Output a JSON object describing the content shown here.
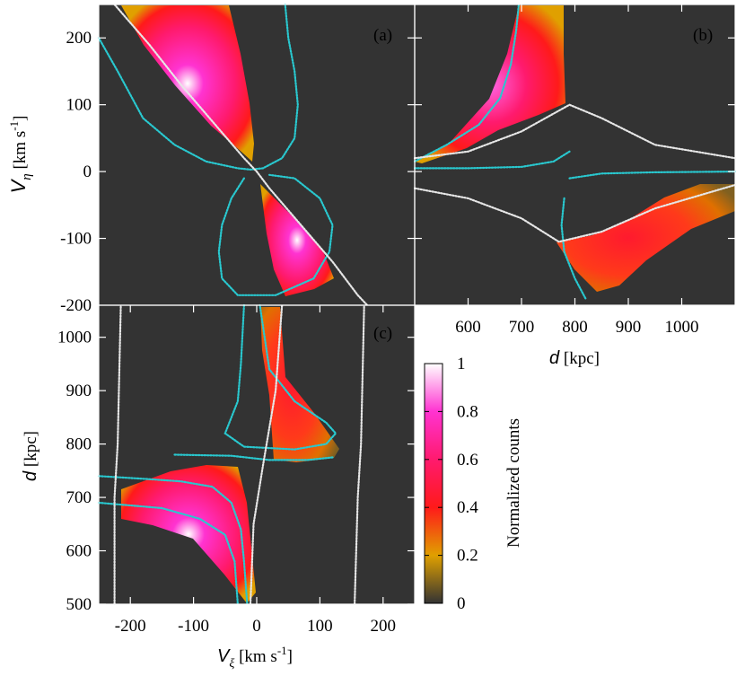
{
  "chart_data": [
    {
      "id": "a",
      "type": "heatmap",
      "panel_label": "(a)",
      "xlabel": "",
      "ylabel": "V_η [km s^-1]",
      "xlim": [
        -250,
        250
      ],
      "ylim": [
        -200,
        250
      ],
      "yticks": [
        200,
        100,
        0,
        -100
      ],
      "ytick_labels": [
        "200",
        "100",
        "0",
        "-100"
      ],
      "background": "#333333",
      "contours": [
        {
          "name": "cyan",
          "color": "#29c8cf",
          "points": [
            [
              -250,
              200
            ],
            [
              -220,
              150
            ],
            [
              -180,
              80
            ],
            [
              -130,
              40
            ],
            [
              -80,
              15
            ],
            [
              -30,
              5
            ],
            [
              -10,
              3
            ],
            [
              10,
              5
            ],
            [
              40,
              20
            ],
            [
              60,
              50
            ],
            [
              65,
              100
            ],
            [
              60,
              150
            ],
            [
              50,
              200
            ],
            [
              45,
              250
            ]
          ]
        },
        {
          "name": "cyan-lower",
          "color": "#29c8cf",
          "points": [
            [
              -20,
              -10
            ],
            [
              -40,
              -40
            ],
            [
              -55,
              -80
            ],
            [
              -60,
              -120
            ],
            [
              -55,
              -160
            ],
            [
              -30,
              -185
            ],
            [
              30,
              -185
            ],
            [
              90,
              -160
            ],
            [
              115,
              -120
            ],
            [
              120,
              -80
            ],
            [
              100,
              -40
            ],
            [
              60,
              -10
            ],
            [
              20,
              -5
            ]
          ]
        },
        {
          "name": "white",
          "color": "#e6e6e6",
          "points": [
            [
              -225,
              250
            ],
            [
              -170,
              190
            ],
            [
              -120,
              130
            ],
            [
              -70,
              75
            ],
            [
              -20,
              20
            ],
            [
              0,
              0
            ],
            [
              20,
              -25
            ],
            [
              70,
              -80
            ],
            [
              120,
              -135
            ],
            [
              160,
              -185
            ],
            [
              175,
              -200
            ]
          ]
        }
      ],
      "density_regions": [
        {
          "peak_x": -95,
          "peak_y": 110,
          "peak_value": 1.0
        },
        {
          "peak_x": 60,
          "peak_y": -100,
          "peak_value": 0.9
        }
      ]
    },
    {
      "id": "b",
      "type": "heatmap",
      "panel_label": "(b)",
      "xlabel": "d [kpc]",
      "ylabel": "",
      "xlim": [
        500,
        1100
      ],
      "ylim": [
        -200,
        250
      ],
      "xticks": [
        600,
        700,
        800,
        900,
        1000
      ],
      "xtick_labels": [
        "600",
        "700",
        "800",
        "900",
        "1000"
      ],
      "background": "#333333",
      "contours": [
        {
          "name": "cyan-upper",
          "color": "#29c8cf",
          "points": [
            [
              500,
              15
            ],
            [
              560,
              40
            ],
            [
              620,
              70
            ],
            [
              660,
              110
            ],
            [
              680,
              160
            ],
            [
              690,
              210
            ],
            [
              695,
              250
            ]
          ]
        },
        {
          "name": "cyan-mid",
          "color": "#29c8cf",
          "points": [
            [
              500,
              5
            ],
            [
              600,
              5
            ],
            [
              700,
              7
            ],
            [
              760,
              15
            ],
            [
              790,
              30
            ]
          ]
        },
        {
          "name": "cyan-right",
          "color": "#29c8cf",
          "points": [
            [
              790,
              -10
            ],
            [
              850,
              -3
            ],
            [
              950,
              -1
            ],
            [
              1100,
              0
            ]
          ]
        },
        {
          "name": "cyan-lower",
          "color": "#29c8cf",
          "points": [
            [
              780,
              -40
            ],
            [
              775,
              -80
            ],
            [
              780,
              -120
            ],
            [
              800,
              -160
            ],
            [
              820,
              -190
            ]
          ]
        },
        {
          "name": "white-upper",
          "color": "#e6e6e6",
          "points": [
            [
              500,
              20
            ],
            [
              600,
              30
            ],
            [
              700,
              60
            ],
            [
              790,
              100
            ],
            [
              850,
              80
            ],
            [
              950,
              40
            ],
            [
              1100,
              20
            ]
          ]
        },
        {
          "name": "white-lower",
          "color": "#e6e6e6",
          "points": [
            [
              500,
              -25
            ],
            [
              600,
              -40
            ],
            [
              700,
              -70
            ],
            [
              770,
              -105
            ],
            [
              850,
              -90
            ],
            [
              950,
              -55
            ],
            [
              1100,
              -20
            ]
          ]
        }
      ],
      "density_regions": [
        {
          "peak_x": 720,
          "peak_y": 200,
          "peak_value": 1.0
        },
        {
          "peak_x": 830,
          "peak_y": -150,
          "peak_value": 0.55
        }
      ]
    },
    {
      "id": "c",
      "type": "heatmap",
      "panel_label": "(c)",
      "xlabel": "V_ξ [km s^-1]",
      "ylabel": "d [kpc]",
      "xlim": [
        -250,
        250
      ],
      "ylim": [
        500,
        1060
      ],
      "xticks": [
        -200,
        -100,
        0,
        100,
        200
      ],
      "xtick_labels": [
        "-200",
        "-100",
        "0",
        "100",
        "200"
      ],
      "yticks": [
        500,
        600,
        700,
        800,
        900,
        1000
      ],
      "ytick_labels": [
        "500",
        "600",
        "700",
        "800",
        "900",
        "1000"
      ],
      "top_label": "-200",
      "background": "#333333",
      "contours": [
        {
          "name": "cyan-lower",
          "color": "#29c8cf",
          "points": [
            [
              -250,
              740
            ],
            [
              -180,
              735
            ],
            [
              -120,
              730
            ],
            [
              -70,
              720
            ],
            [
              -40,
              690
            ],
            [
              -25,
              640
            ],
            [
              -20,
              580
            ],
            [
              -15,
              500
            ]
          ]
        },
        {
          "name": "cyan-lower-b",
          "color": "#29c8cf",
          "points": [
            [
              -250,
              690
            ],
            [
              -150,
              680
            ],
            [
              -90,
              660
            ],
            [
              -50,
              630
            ],
            [
              -35,
              580
            ],
            [
              -30,
              500
            ]
          ]
        },
        {
          "name": "cyan-upper",
          "color": "#29c8cf",
          "points": [
            [
              -20,
              1060
            ],
            [
              -25,
              950
            ],
            [
              -30,
              880
            ],
            [
              -50,
              820
            ],
            [
              -20,
              795
            ],
            [
              60,
              790
            ],
            [
              110,
              800
            ],
            [
              125,
              820
            ],
            [
              110,
              840
            ],
            [
              60,
              880
            ],
            [
              20,
              940
            ],
            [
              5,
              1060
            ]
          ]
        },
        {
          "name": "cyan-cross",
          "color": "#29c8cf",
          "points": [
            [
              -130,
              780
            ],
            [
              -40,
              778
            ],
            [
              20,
              770
            ],
            [
              80,
              770
            ],
            [
              120,
              775
            ]
          ]
        },
        {
          "name": "white-left",
          "color": "#e6e6e6",
          "points": [
            [
              -225,
              500
            ],
            [
              -225,
              700
            ],
            [
              -220,
              800
            ],
            [
              -215,
              1060
            ]
          ]
        },
        {
          "name": "white-right",
          "color": "#e6e6e6",
          "points": [
            [
              155,
              500
            ],
            [
              160,
              700
            ],
            [
              165,
              800
            ],
            [
              170,
              1060
            ]
          ]
        },
        {
          "name": "white-mid",
          "color": "#e6e6e6",
          "points": [
            [
              -10,
              500
            ],
            [
              -5,
              650
            ],
            [
              10,
              760
            ],
            [
              30,
              900
            ],
            [
              40,
              1060
            ]
          ]
        }
      ],
      "density_regions": [
        {
          "peak_x": -70,
          "peak_y": 720,
          "peak_value": 1.0
        },
        {
          "peak_x": 60,
          "peak_y": 850,
          "peak_value": 0.55
        }
      ]
    },
    {
      "id": "colorbar",
      "type": "heatmap",
      "label": "Normalized counts",
      "ticks": [
        0,
        0.2,
        0.4,
        0.6,
        0.8,
        1
      ],
      "tick_labels": [
        "0",
        "0.2",
        "0.4",
        "0.6",
        "0.8",
        "1"
      ],
      "colors": [
        "#333333",
        "#e0a000",
        "#ff1a1a",
        "#ff1a6e",
        "#ff33d1",
        "#ffffff"
      ]
    }
  ]
}
